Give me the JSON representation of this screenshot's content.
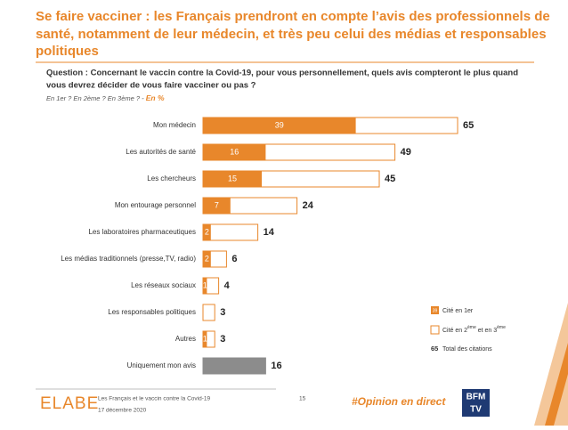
{
  "header": {
    "title": [
      "Se faire vacciner : les Français prendront en compte l’avis des professionnels de",
      "santé, notamment de leur médecin, et très peu celui des médias et responsables",
      "politiques"
    ],
    "question": [
      "Question : Concernant le vaccin contre la Covid-19, pour vous personnellement, quels avis compteront le plus quand",
      "vous devrez décider de vous faire vacciner ou pas ?"
    ],
    "subquestion": "En 1er ? En 2ème ? En 3ème ? - ",
    "unit": "En %"
  },
  "chart_data": {
    "type": "bar",
    "orientation": "horizontal",
    "categories": [
      "Mon médecin",
      "Les autorités de santé",
      "Les chercheurs",
      "Mon entourage personnel",
      "Les laboratoires pharmaceutiques",
      "Les médias traditionnels (presse,TV, radio)",
      "Les réseaux sociaux",
      "Les responsables politiques",
      "Autres",
      "Uniquement mon avis"
    ],
    "series": [
      {
        "name": "Total des citations",
        "color": "#e8872b",
        "fills": [
          "#ffffff",
          "#ffffff",
          "#ffffff",
          "#ffffff",
          "#ffffff",
          "#ffffff",
          "#ffffff",
          "#ffffff",
          "#ffffff",
          "#8c8c8c"
        ],
        "values": [
          65,
          49,
          45,
          24,
          14,
          6,
          4,
          3,
          3,
          16
        ]
      },
      {
        "name": "Cité en 1er",
        "color": "#e8872b",
        "values": [
          39,
          16,
          15,
          7,
          2,
          2,
          1,
          null,
          1,
          null
        ]
      }
    ],
    "xlim": [
      0,
      65
    ],
    "legend": {
      "sample_first": "39",
      "first": "Cité en 1er",
      "second": [
        "Cité en 2",
        "ème",
        " et en 3",
        "ème"
      ],
      "sample_total": "65",
      "total": "Total des citations"
    }
  },
  "footer": {
    "brand": "ELABE",
    "study": "Les Français et le vaccin contre la Covid-19",
    "date": "17 décembre 2020",
    "page": "15",
    "tag": "#Opinion en direct",
    "logo": [
      "BFM",
      "TV"
    ]
  }
}
